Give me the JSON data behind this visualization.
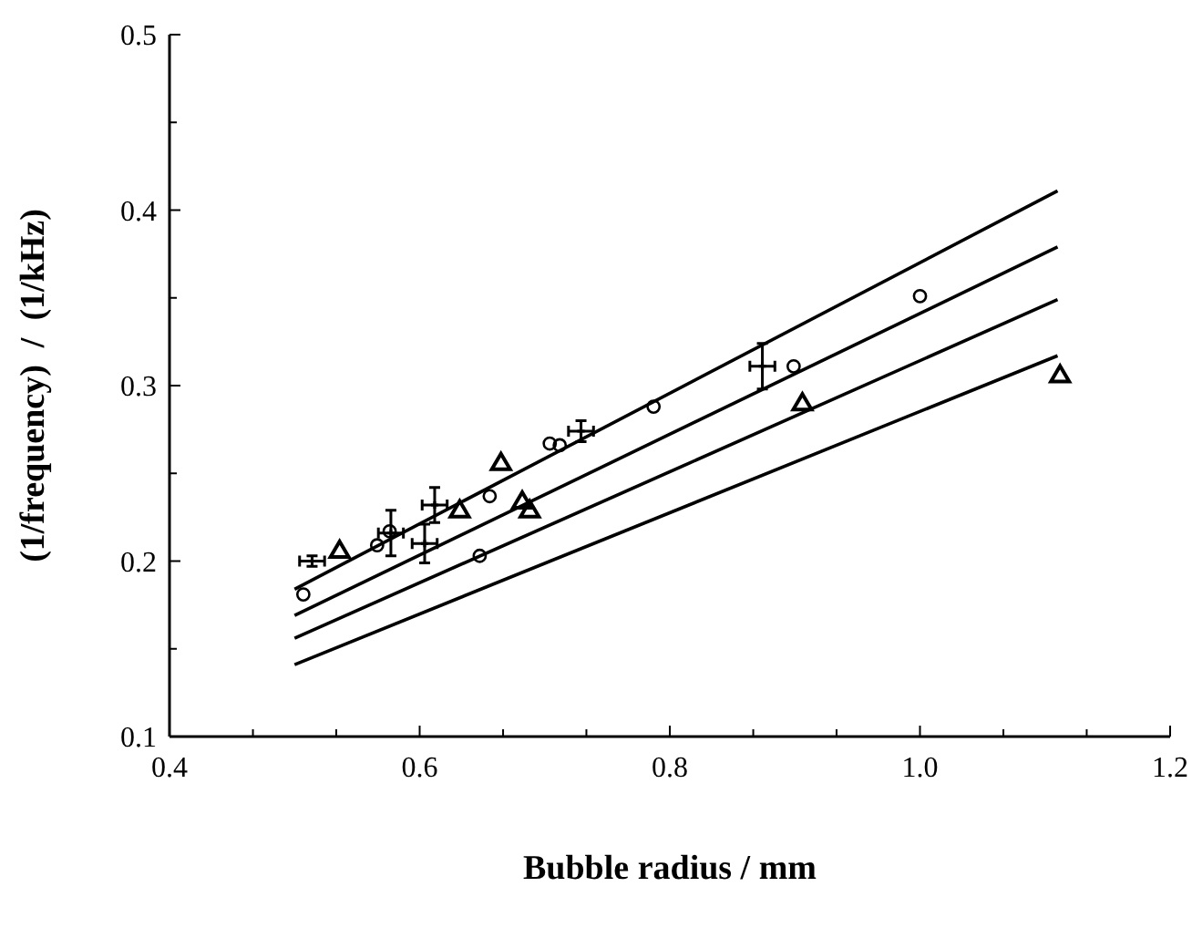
{
  "chart_data": {
    "type": "scatter",
    "xlabel": "Bubble radius / mm",
    "ylabel": "(1/frequency)  /  (1/kHz)",
    "xlim": [
      0.4,
      1.2
    ],
    "ylim": [
      0.1,
      0.5
    ],
    "xticks": [
      0.4,
      {
        "value": 0.4667,
        "label": null
      },
      {
        "value": 0.5333,
        "label": null
      },
      0.6,
      {
        "value": 0.6667,
        "label": null
      },
      {
        "value": 0.7333,
        "label": null
      },
      0.8,
      {
        "value": 0.8667,
        "label": null
      },
      {
        "value": 0.9333,
        "label": null
      },
      {
        "value": 1.0,
        "label": "1.0"
      },
      {
        "value": 1.0667,
        "label": null
      },
      {
        "value": 1.1333,
        "label": null
      },
      1.2
    ],
    "yticks": [
      0.1,
      {
        "value": 0.15,
        "label": null
      },
      0.2,
      {
        "value": 0.25,
        "label": null
      },
      0.3,
      {
        "value": 0.35,
        "label": null
      },
      0.4,
      {
        "value": 0.45,
        "label": null
      },
      0.5
    ],
    "grid": false,
    "series": [
      {
        "marker": "circle",
        "color": "#000000",
        "x": [
          0.507,
          0.566,
          0.576,
          0.648,
          0.656,
          0.704,
          0.712,
          0.787,
          0.899,
          1.0
        ],
        "values": [
          0.181,
          0.209,
          0.217,
          0.203,
          0.237,
          0.267,
          0.266,
          0.288,
          0.311,
          0.351
        ]
      },
      {
        "marker": "triangle",
        "color": "#000000",
        "x": [
          0.536,
          0.632,
          0.665,
          0.682,
          0.688,
          0.906,
          1.112
        ],
        "values": [
          0.206,
          0.229,
          0.256,
          0.234,
          0.229,
          0.29,
          0.306
        ]
      },
      {
        "marker": "cross",
        "color": "#000000",
        "x": [
          0.514,
          0.577,
          0.604,
          0.612,
          0.729,
          0.874
        ],
        "values": [
          0.2,
          0.216,
          0.21,
          0.232,
          0.274,
          0.311
        ],
        "errors": [
          0.003,
          0.013,
          0.011,
          0.01,
          0.006,
          0.013
        ],
        "xerrors": [
          0.01,
          0.01,
          0.01,
          0.01,
          0.01,
          0.01
        ]
      },
      {
        "type": "line",
        "color": "#000000",
        "x": [
          0.5,
          1.11
        ],
        "values": [
          0.184,
          0.411
        ]
      },
      {
        "type": "line",
        "color": "#000000",
        "x": [
          0.5,
          1.11
        ],
        "values": [
          0.169,
          0.379
        ]
      },
      {
        "type": "line",
        "color": "#000000",
        "x": [
          0.5,
          1.11
        ],
        "values": [
          0.156,
          0.349
        ]
      },
      {
        "type": "line",
        "color": "#000000",
        "x": [
          0.5,
          1.11
        ],
        "values": [
          0.141,
          0.317
        ]
      }
    ]
  }
}
